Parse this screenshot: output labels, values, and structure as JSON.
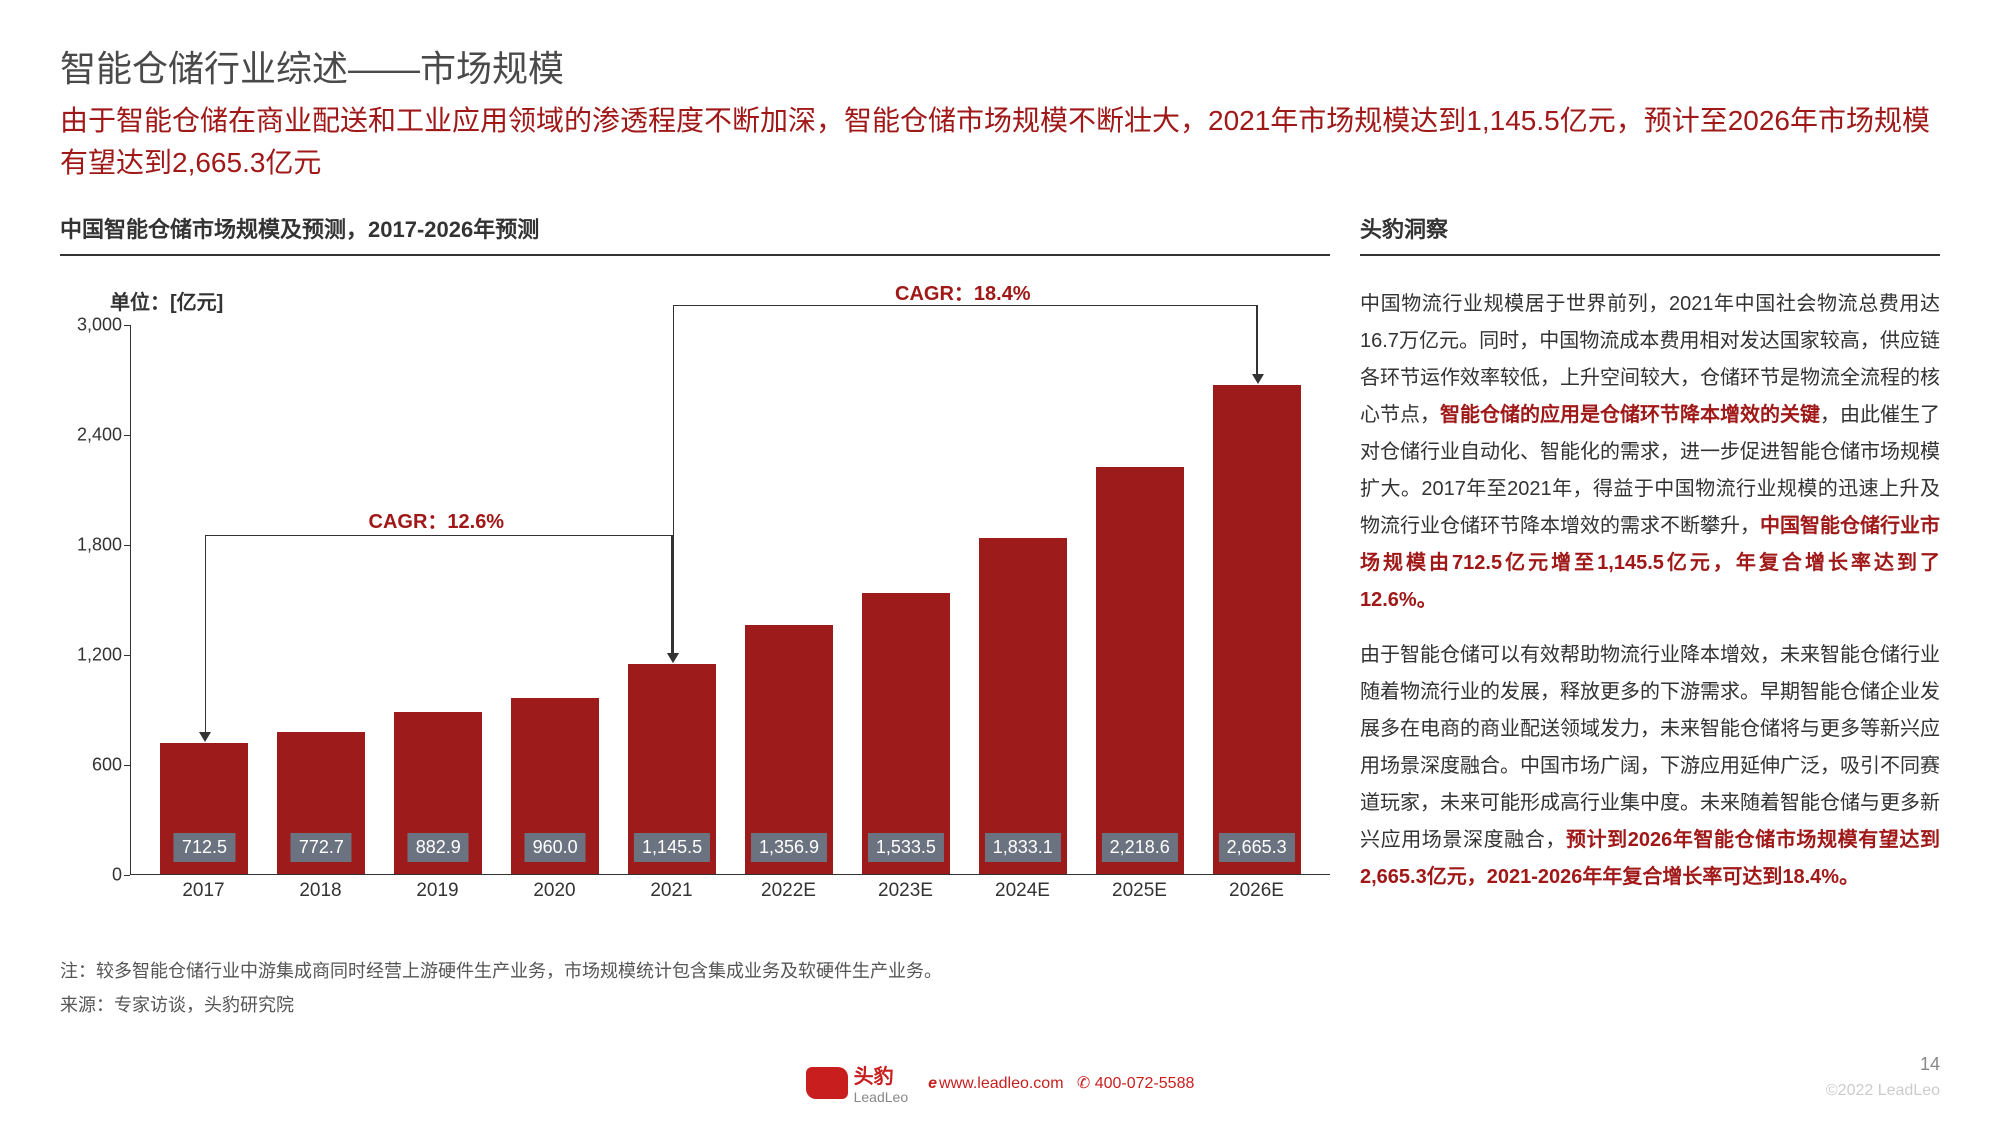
{
  "header": {
    "title": "智能仓储行业综述——市场规模",
    "subtitle": "由于智能仓储在商业配送和工业应用领域的渗透程度不断加深，智能仓储市场规模不断壮大，2021年市场规模达到1,145.5亿元，预计至2026年市场规模有望达到2,665.3亿元"
  },
  "chart": {
    "title": "中国智能仓储市场规模及预测，2017-2026年预测",
    "unit": "单位：[亿元]",
    "type": "bar",
    "categories": [
      "2017",
      "2018",
      "2019",
      "2020",
      "2021",
      "2022E",
      "2023E",
      "2024E",
      "2025E",
      "2026E"
    ],
    "values": [
      712.5,
      772.7,
      882.9,
      960.0,
      1145.5,
      1356.9,
      1533.5,
      1833.1,
      2218.6,
      2665.3
    ],
    "value_labels": [
      "712.5",
      "772.7",
      "882.9",
      "960.0",
      "1,145.5",
      "1,356.9",
      "1,533.5",
      "1,833.1",
      "2,218.6",
      "2,665.3"
    ],
    "bar_color": "#9e1b1b",
    "label_bg": "#6b7280",
    "label_fg": "#ffffff",
    "ymax": 3000,
    "yticks": [
      0,
      600,
      1200,
      1800,
      2400,
      3000
    ],
    "ytick_labels": [
      "0",
      "600",
      "1,200",
      "1,800",
      "2,400",
      "3,000"
    ],
    "cagr1": {
      "label": "CAGR：12.6%",
      "from": 0,
      "to": 4
    },
    "cagr2": {
      "label": "CAGR：18.4%",
      "from": 4,
      "to": 9
    },
    "note": "注：较多智能仓储行业中游集成商同时经营上游硬件生产业务，市场规模统计包含集成业务及软硬件生产业务。",
    "source": "来源：专家访谈，头豹研究院"
  },
  "insight": {
    "title": "头豹洞察",
    "p1a": "中国物流行业规模居于世界前列，2021年中国社会物流总费用达16.7万亿元。同时，中国物流成本费用相对发达国家较高，供应链各环节运作效率较低，上升空间较大，仓储环节是物流全流程的核心节点，",
    "p1h1": "智能仓储的应用是仓储环节降本增效的关键",
    "p1b": "，由此催生了对仓储行业自动化、智能化的需求，进一步促进智能仓储市场规模扩大。2017年至2021年，得益于中国物流行业规模的迅速上升及物流行业仓储环节降本增效的需求不断攀升，",
    "p1h2": "中国智能仓储行业市场规模由712.5亿元增至1,145.5亿元，年复合增长率达到了12.6%。",
    "p2a": "由于智能仓储可以有效帮助物流行业降本增效，未来智能仓储行业随着物流行业的发展，释放更多的下游需求。早期智能仓储企业发展多在电商的商业配送领域发力，未来智能仓储将与更多等新兴应用场景深度融合。中国市场广阔，下游应用延伸广泛，吸引不同赛道玩家，未来可能形成高行业集中度。未来随着智能仓储与更多新兴应用场景深度融合，",
    "p2h1": "预计到2026年智能仓储市场规模有望达到2,665.3亿元，2021-2026年年复合增长率可达到18.4%。"
  },
  "footer": {
    "brand_cn": "头豹",
    "brand_en": "LeadLeo",
    "url": "www.leadleo.com",
    "phone": "400-072-5588",
    "page": "14",
    "copyright": "©2022 LeadLeo"
  },
  "colors": {
    "accent": "#a01818",
    "text": "#333333",
    "muted": "#888888"
  }
}
